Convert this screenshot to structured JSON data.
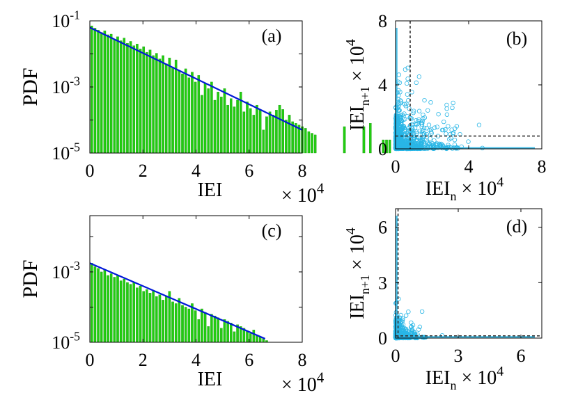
{
  "colors": {
    "bar": "#22cc11",
    "bar_edge": "#0a8a00",
    "fit_line": "#0018d8",
    "scatter": "#29b6e6",
    "guide": "#333333",
    "axis": "#000000"
  },
  "chart_data": [
    {
      "panel": "a",
      "type": "bar",
      "panel_label": "(a)",
      "ylabel": "PDF",
      "xlabel": "IEI",
      "x_multiplier": "× 10^4",
      "y_scale": "log",
      "xlim": [
        0,
        8
      ],
      "ylim_exp": [
        -5,
        -1
      ],
      "x_ticks": [
        "0",
        "2",
        "4",
        "6",
        "8"
      ],
      "y_ticks": [
        {
          "base": "10",
          "exp": "-1"
        },
        {
          "base": "10",
          "exp": "-3"
        },
        {
          "base": "10",
          "exp": "-5"
        }
      ],
      "bin_start": 0.03,
      "bin_width": 0.122,
      "bar_log10_values": [
        -1.15,
        -1.22,
        -1.28,
        -1.35,
        -1.3,
        -1.42,
        -1.4,
        -1.55,
        -1.48,
        -1.6,
        -1.52,
        -1.68,
        -1.62,
        -1.75,
        -1.7,
        -1.85,
        -1.78,
        -1.95,
        -1.88,
        -2.05,
        -1.98,
        -2.15,
        -2.05,
        -2.3,
        -2.12,
        -2.4,
        -2.18,
        -2.5,
        -2.6,
        -2.45,
        -2.72,
        -2.55,
        -2.85,
        -2.65,
        -3.25,
        -2.9,
        -3.05,
        -2.85,
        -3.4,
        -3.15,
        -3.3,
        -3.05,
        -3.55,
        -3.35,
        -3.6,
        -3.4,
        -3.15,
        -3.75,
        -3.45,
        -3.65,
        -3.85,
        -3.55,
        -3.7,
        -4.3,
        -3.9,
        -3.75,
        -3.85,
        -3.7,
        -3.55,
        -3.68,
        -4.0,
        -3.85,
        -4.05,
        -4.1,
        -4.15,
        -4.2,
        -4.25,
        -4.35,
        -4.4,
        -4.45,
        -5,
        -5,
        -5,
        -5,
        -5,
        -5,
        -5,
        -5,
        -4.2,
        -5,
        -5,
        -5,
        -5,
        -5,
        -4.2,
        -5,
        -4.1,
        -5,
        -5,
        -5,
        -4.6,
        -4.6,
        -4.6
      ],
      "fit_line": {
        "x": [
          0,
          8
        ],
        "log10_y": [
          -1.2,
          -4.3
        ]
      }
    },
    {
      "panel": "b",
      "type": "scatter",
      "panel_label": "(b)",
      "ylabel_main": "IEI",
      "ylabel_sub": "n+1",
      "ylabel_mult": "× 10^4",
      "xlabel_main": "IEI",
      "xlabel_sub": "n",
      "xlabel_mult": "× 10^4",
      "xlim": [
        0,
        8
      ],
      "ylim": [
        0,
        8
      ],
      "x_ticks": [
        "0",
        "4",
        "8"
      ],
      "y_ticks": [
        "0",
        "4",
        "8"
      ],
      "guide_lines": {
        "x": 0.8,
        "y": 0.8
      },
      "n_points": 900,
      "mean_scale": 0.9
    },
    {
      "panel": "c",
      "type": "bar",
      "panel_label": "(c)",
      "ylabel": "PDF",
      "xlabel": "IEI",
      "x_multiplier": "× 10^4",
      "y_scale": "log",
      "xlim": [
        0,
        8
      ],
      "ylim_exp": [
        -5,
        -1.4
      ],
      "x_ticks": [
        "0",
        "2",
        "4",
        "6",
        "8"
      ],
      "y_ticks": [
        {
          "base": "10",
          "exp": "-3"
        },
        {
          "base": "10",
          "exp": "-5"
        }
      ],
      "bin_start": 0.03,
      "bin_width": 0.122,
      "bar_log10_values": [
        -2.75,
        -2.85,
        -2.9,
        -3.0,
        -2.95,
        -3.1,
        -3.05,
        -3.15,
        -3.1,
        -3.25,
        -3.2,
        -3.3,
        -3.35,
        -3.3,
        -3.45,
        -3.4,
        -3.55,
        -3.5,
        -3.6,
        -3.55,
        -3.7,
        -3.65,
        -3.8,
        -3.7,
        -3.55,
        -3.85,
        -3.9,
        -3.75,
        -3.95,
        -4.0,
        -4.05,
        -3.9,
        -4.1,
        -4.35,
        -4.05,
        -4.15,
        -4.55,
        -4.2,
        -4.25,
        -4.3,
        -4.6,
        -4.35,
        -4.4,
        -4.45,
        -4.7,
        -4.5,
        -4.55,
        -4.6,
        -4.7,
        -4.75,
        -4.65,
        -4.8,
        -4.85,
        -4.9,
        -4.95
      ],
      "fit_line": {
        "x": [
          0,
          6.6
        ],
        "log10_y": [
          -2.75,
          -4.9
        ]
      }
    },
    {
      "panel": "d",
      "type": "scatter",
      "panel_label": "(d)",
      "ylabel_main": "IEI",
      "ylabel_sub": "n+1",
      "ylabel_mult": "× 10^4",
      "xlabel_main": "IEI",
      "xlabel_sub": "n",
      "xlabel_mult": "× 10^4",
      "xlim": [
        0,
        7
      ],
      "ylim": [
        0,
        7
      ],
      "x_ticks": [
        "0",
        "3",
        "6"
      ],
      "y_ticks": [
        "0",
        "3",
        "6"
      ],
      "guide_lines": {
        "x": 0.12,
        "y": 0.12
      },
      "n_points": 600,
      "mean_scale": 0.35
    }
  ]
}
